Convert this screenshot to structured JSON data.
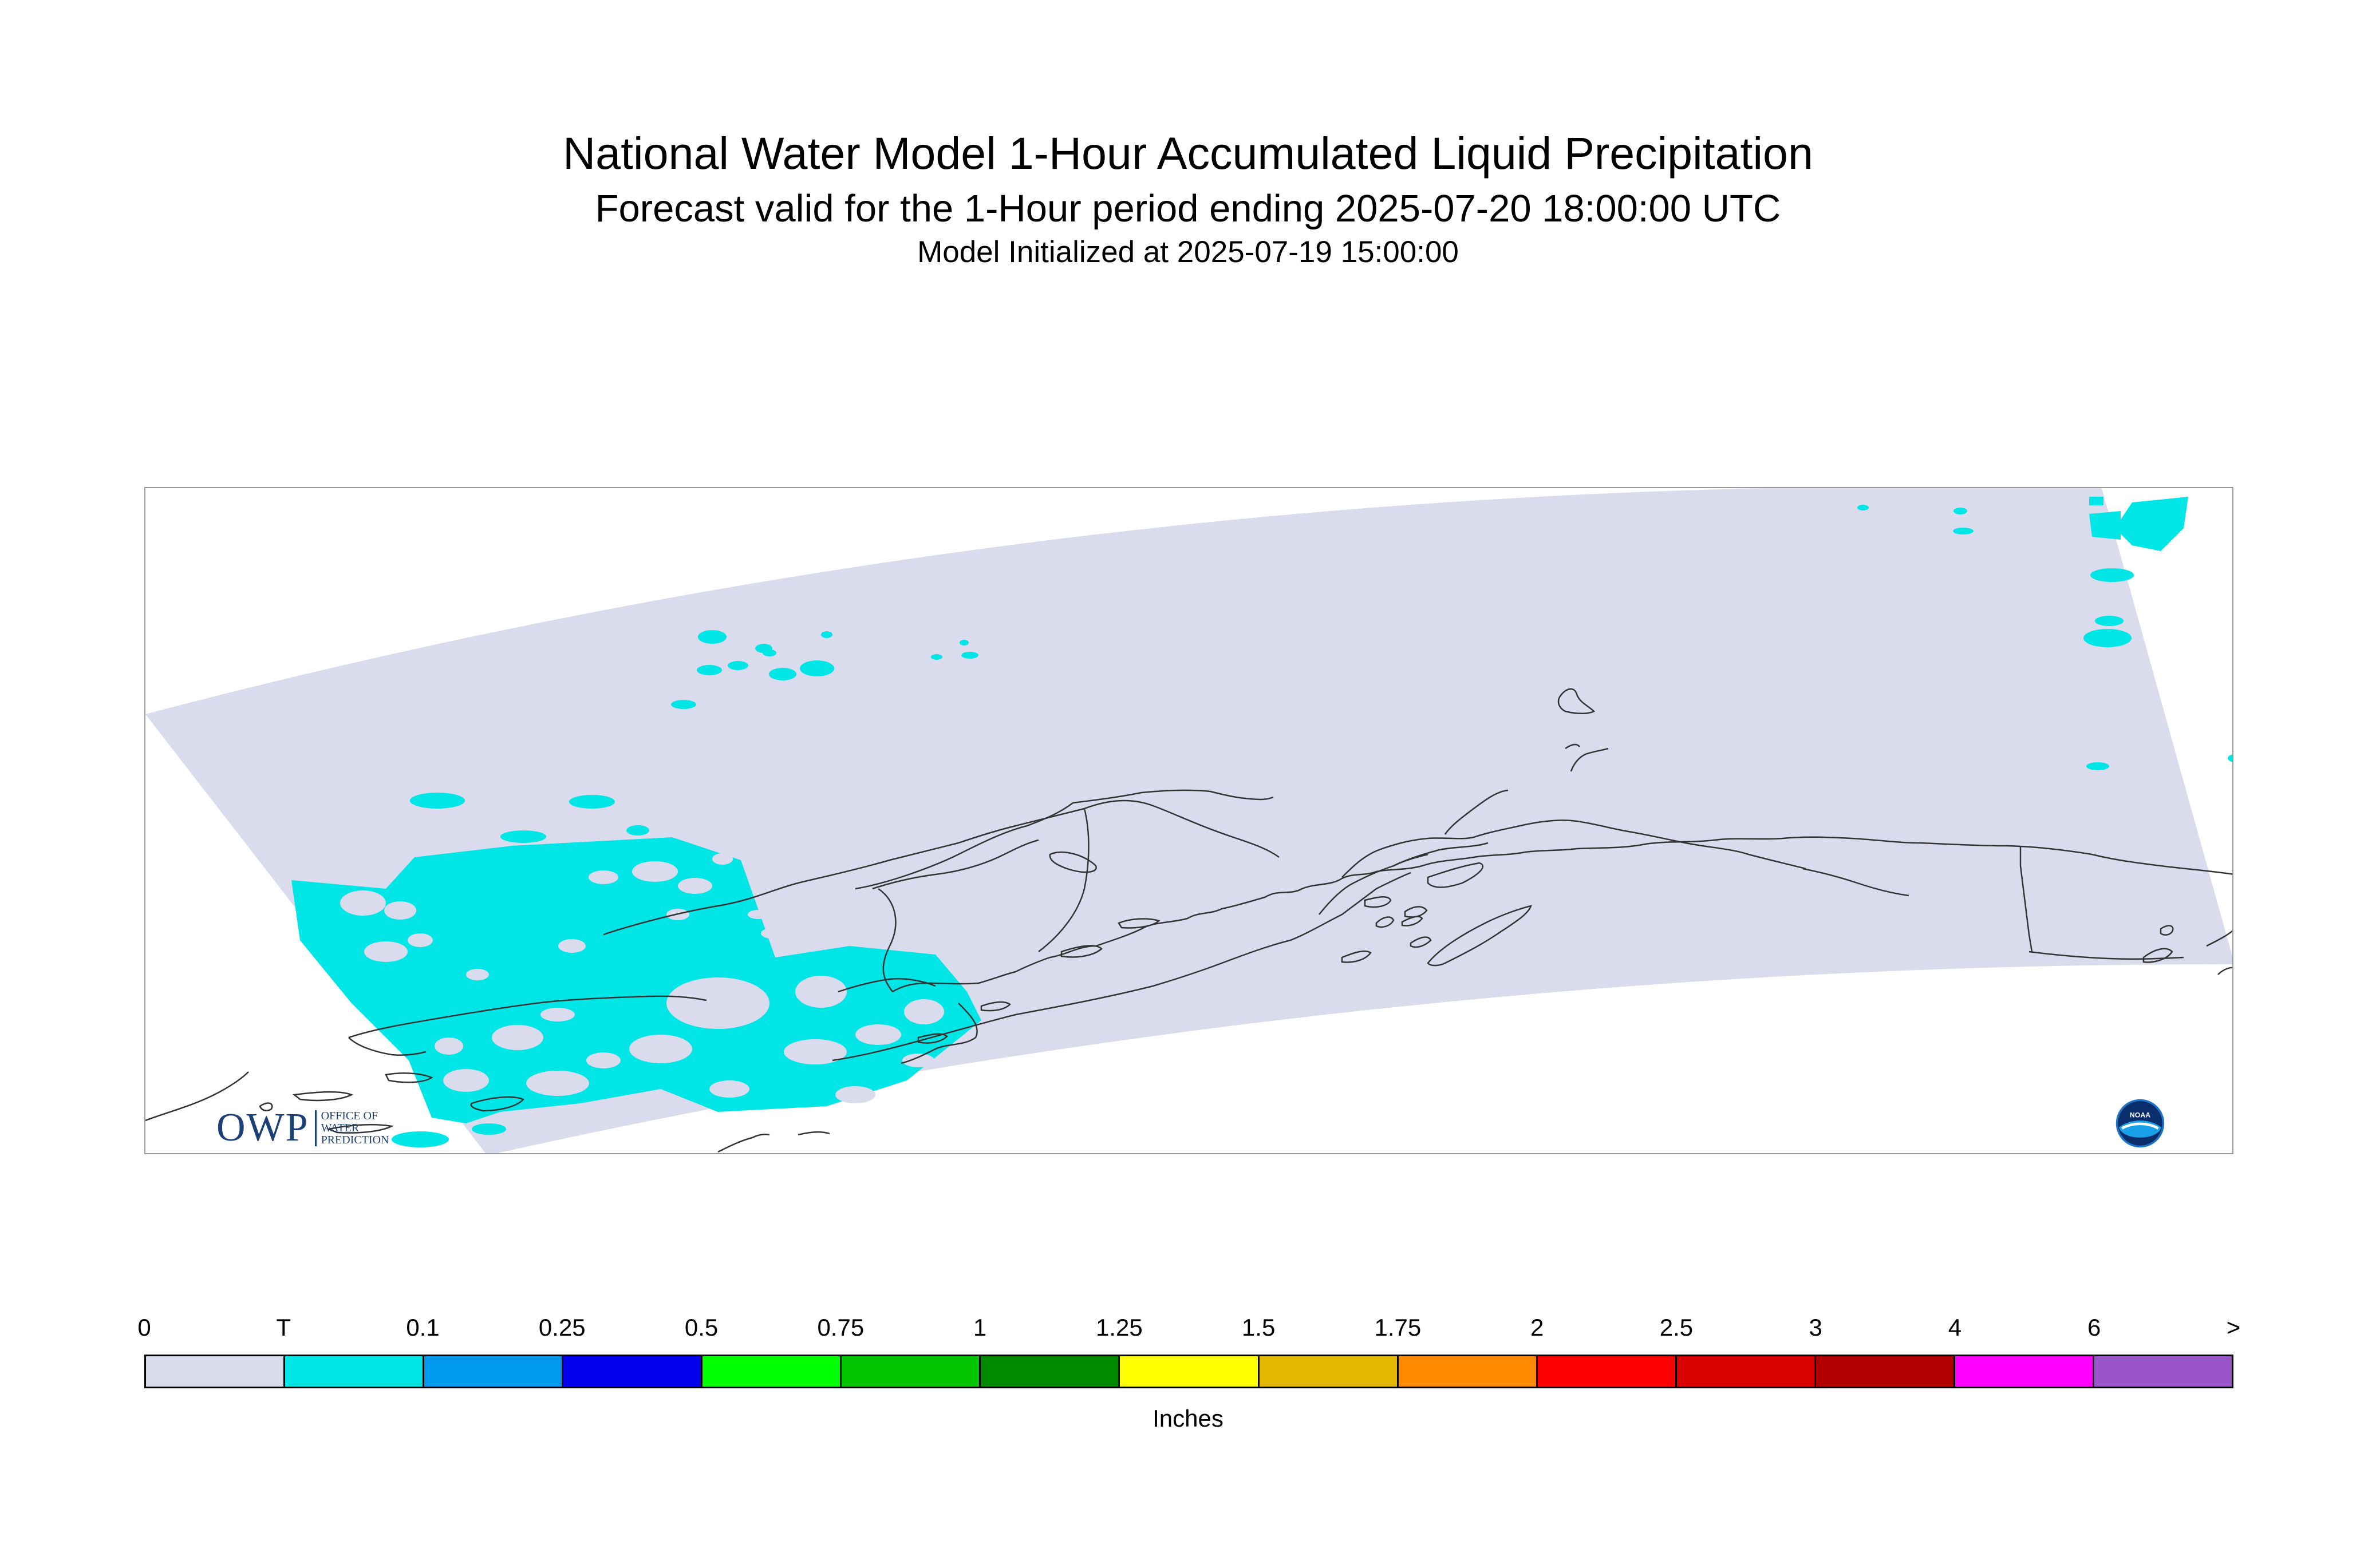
{
  "header": {
    "title": "National Water Model 1-Hour Accumulated Liquid Precipitation",
    "subtitle": "Forecast valid for the 1-Hour period ending 2025-07-20 18:00:00 UTC",
    "init": "Model Initialized at 2025-07-19 15:00:00"
  },
  "legend": {
    "ticks": [
      "0",
      "T",
      "0.1",
      "0.25",
      "0.5",
      "0.75",
      "1",
      "1.25",
      "1.5",
      "1.75",
      "2",
      "2.5",
      "3",
      "4",
      "6",
      ">"
    ],
    "colors": [
      "#dadcee",
      "#00e5e5",
      "#0099ee",
      "#0000ee",
      "#00ff00",
      "#00c400",
      "#008a00",
      "#ffff00",
      "#e5b800",
      "#ff8a00",
      "#ff0000",
      "#d80000",
      "#b20000",
      "#ff00ff",
      "#9955c9"
    ],
    "units": "Inches"
  },
  "map": {
    "domain_color": "#dadcee",
    "precip_color": "#00e5e5",
    "coast_color": "#333333"
  },
  "logos": {
    "owp_mark": "OWP",
    "owp_lines": [
      "OFFICE OF",
      "WATER",
      "PREDICTION"
    ],
    "noaa_label": "NOAA"
  }
}
